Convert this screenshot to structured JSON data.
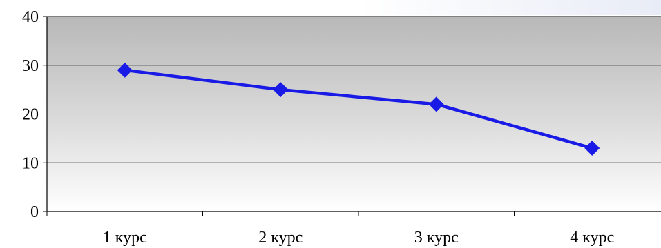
{
  "chart_data": {
    "type": "line",
    "categories": [
      "1 курс",
      "2 курс",
      "3 курс",
      "4 курс"
    ],
    "series": [
      {
        "values": [
          29,
          25,
          22,
          13
        ],
        "color": "#1a1ae6",
        "marker": "diamond"
      }
    ],
    "title": "",
    "xlabel": "",
    "ylabel": "",
    "ylim": [
      0,
      40
    ],
    "yticks": [
      "0",
      "10",
      "20",
      "30",
      "40"
    ],
    "grid": true,
    "legend": "none",
    "plot_background": "gray-to-white vertical gradient"
  }
}
